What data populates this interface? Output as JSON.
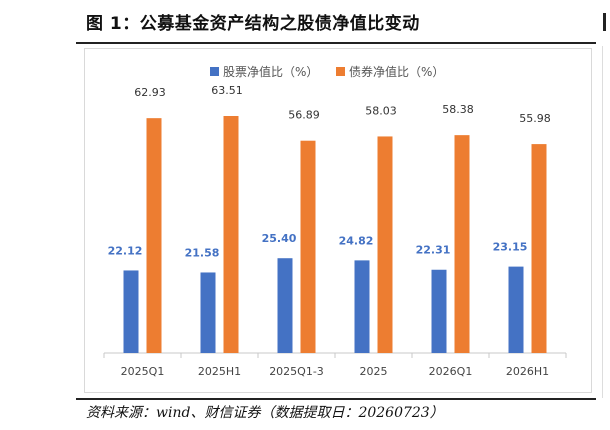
{
  "figure": {
    "title": "图 1：公募基金资产结构之股债净值比变动",
    "source": "资料来源：wind、财信证券（数据提取日：20260723）"
  },
  "colors": {
    "stock": "#4472c4",
    "bond": "#ed7d31"
  },
  "chart_data": {
    "type": "bar",
    "categories": [
      "2025Q1",
      "2025H1",
      "2025Q1-3",
      "2025",
      "2026Q1",
      "2026H1"
    ],
    "series": [
      {
        "name": "股票净值比（%）",
        "values": [
          22.12,
          21.58,
          25.4,
          24.82,
          22.31,
          23.15
        ]
      },
      {
        "name": "债券净值比（%）",
        "values": [
          62.93,
          63.51,
          56.89,
          58.03,
          58.38,
          55.98
        ]
      }
    ],
    "data_labels": {
      "stock": [
        "22.12",
        "21.58",
        "25.40",
        "24.82",
        "22.31",
        "23.15"
      ],
      "bond": [
        "62.93",
        "63.51",
        "56.89",
        "58.03",
        "58.38",
        "55.98"
      ]
    },
    "ylim": [
      0,
      68
    ],
    "legend": "top",
    "grid": false,
    "y_axis_visible": false
  }
}
